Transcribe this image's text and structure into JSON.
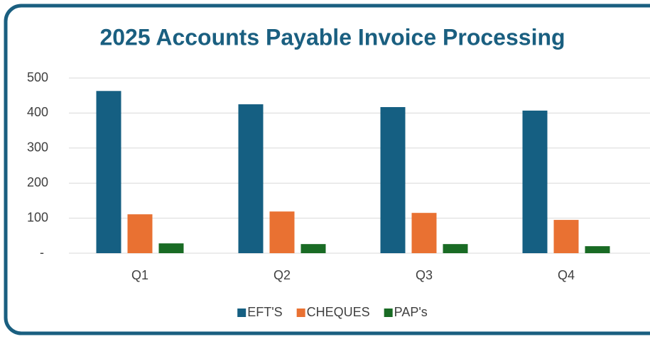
{
  "chart_data": {
    "type": "bar",
    "title": "2025 Accounts Payable Invoice Processing",
    "categories": [
      "Q1",
      "Q2",
      "Q3",
      "Q4"
    ],
    "series": [
      {
        "name": "EFT'S",
        "color": "#155f82",
        "values": [
          463,
          425,
          417,
          407
        ]
      },
      {
        "name": "CHEQUES",
        "color": "#e97132",
        "values": [
          111,
          119,
          115,
          95
        ]
      },
      {
        "name": "PAP's",
        "color": "#196b24",
        "values": [
          28,
          26,
          26,
          20
        ]
      }
    ],
    "ylim": [
      0,
      500
    ],
    "yticks": [
      {
        "value": 0,
        "label": "-"
      },
      100,
      200,
      300,
      400,
      500
    ],
    "grid": true,
    "legend": "bottom"
  }
}
